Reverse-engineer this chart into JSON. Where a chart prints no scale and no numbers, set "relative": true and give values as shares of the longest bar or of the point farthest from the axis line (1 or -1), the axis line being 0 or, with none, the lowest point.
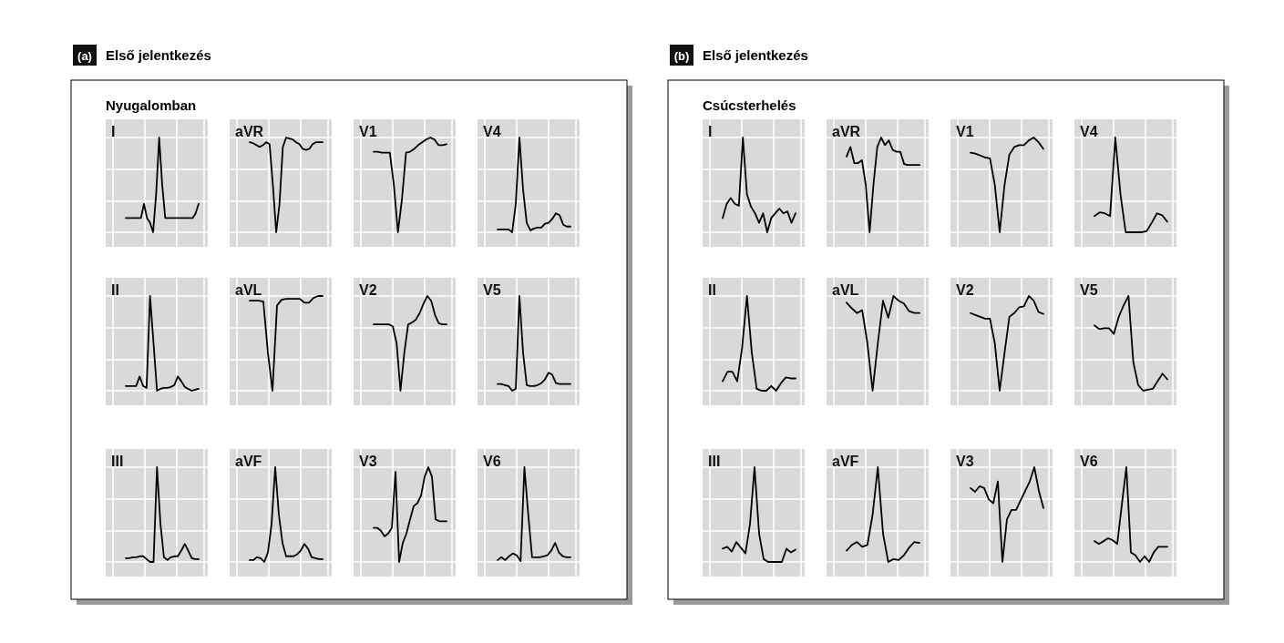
{
  "chart_data": [
    {
      "type": "other",
      "title": "Első jelentkezés",
      "subtitle": "Nyugalomban",
      "annotations": [
        "(a)"
      ]
    },
    {
      "type": "line",
      "title": "I",
      "relative": true,
      "grid": true,
      "color": "#000000",
      "categories": [
        null,
        null,
        null,
        null,
        null,
        null,
        null,
        null,
        null,
        null,
        null,
        null,
        null,
        null,
        null,
        null,
        null,
        null,
        null,
        null,
        null,
        null,
        null,
        null,
        null
      ],
      "values": [
        0.15,
        0.15,
        0.15,
        0.15,
        0.15,
        0.15,
        0.3,
        0.15,
        0.1,
        0.0,
        0.4,
        1.0,
        0.5,
        0.15,
        0.15,
        0.15,
        0.15,
        0.15,
        0.15,
        0.15,
        0.15,
        0.15,
        0.15,
        0.2,
        0.3
      ]
    },
    {
      "type": "line",
      "title": "aVR",
      "relative": true,
      "grid": true,
      "color": "#000000",
      "categories": [
        null,
        null,
        null,
        null,
        null,
        null,
        null,
        null,
        null,
        null,
        null,
        null,
        null,
        null,
        null,
        null,
        null,
        null,
        null,
        null,
        null,
        null,
        null
      ],
      "values": [
        0.95,
        0.94,
        0.92,
        0.9,
        0.92,
        0.95,
        0.93,
        0.5,
        0.0,
        0.3,
        0.9,
        1.0,
        0.99,
        0.98,
        0.95,
        0.93,
        0.88,
        0.87,
        0.88,
        0.93,
        0.95,
        0.95,
        0.95
      ]
    },
    {
      "type": "line",
      "title": "V1",
      "relative": true,
      "grid": true,
      "color": "#000000",
      "categories": [
        null,
        null,
        null,
        null,
        null,
        null,
        null,
        null,
        null,
        null,
        null,
        null,
        null,
        null,
        null,
        null,
        null,
        null,
        null
      ],
      "values": [
        0.85,
        0.85,
        0.84,
        0.84,
        0.84,
        0.5,
        0.0,
        0.35,
        0.84,
        0.85,
        0.88,
        0.92,
        0.95,
        0.98,
        1.0,
        0.98,
        0.92,
        0.92,
        0.93
      ]
    },
    {
      "type": "line",
      "title": "V4",
      "relative": true,
      "grid": true,
      "color": "#000000",
      "categories": [
        null,
        null,
        null,
        null,
        null,
        null,
        null,
        null,
        null,
        null,
        null,
        null,
        null,
        null,
        null,
        null,
        null,
        null,
        null,
        null,
        null
      ],
      "values": [
        0.03,
        0.03,
        0.03,
        0.03,
        0.0,
        0.3,
        1.0,
        0.45,
        0.1,
        0.02,
        0.04,
        0.05,
        0.05,
        0.09,
        0.1,
        0.14,
        0.2,
        0.18,
        0.08,
        0.06,
        0.06
      ]
    },
    {
      "type": "line",
      "title": "II",
      "relative": true,
      "grid": true,
      "color": "#000000",
      "categories": [
        null,
        null,
        null,
        null,
        null,
        null,
        null,
        null,
        null,
        null,
        null,
        null,
        null,
        null,
        null,
        null,
        null,
        null,
        null,
        null,
        null,
        null
      ],
      "values": [
        0.05,
        0.05,
        0.05,
        0.05,
        0.15,
        0.05,
        0.03,
        1.0,
        0.5,
        0.0,
        0.02,
        0.03,
        0.03,
        0.04,
        0.06,
        0.15,
        0.1,
        0.04,
        0.02,
        0.0,
        0.01,
        0.02
      ]
    },
    {
      "type": "line",
      "title": "aVL",
      "relative": true,
      "grid": true,
      "color": "#000000",
      "categories": [
        null,
        null,
        null,
        null,
        null,
        null,
        null,
        null,
        null,
        null,
        null,
        null,
        null,
        null,
        null,
        null,
        null
      ],
      "values": [
        0.95,
        0.95,
        0.95,
        0.94,
        0.4,
        0.0,
        0.9,
        0.96,
        0.97,
        0.97,
        0.97,
        0.97,
        0.93,
        0.93,
        0.98,
        1.0,
        1.0
      ]
    },
    {
      "type": "line",
      "title": "V2",
      "relative": true,
      "grid": true,
      "color": "#000000",
      "categories": [
        null,
        null,
        null,
        null,
        null,
        null,
        null,
        null,
        null,
        null,
        null,
        null,
        null,
        null,
        null,
        null,
        null,
        null,
        null,
        null
      ],
      "values": [
        0.7,
        0.7,
        0.7,
        0.7,
        0.7,
        0.68,
        0.5,
        0.0,
        0.4,
        0.7,
        0.72,
        0.75,
        0.82,
        0.92,
        1.0,
        0.95,
        0.8,
        0.71,
        0.7,
        0.7
      ]
    },
    {
      "type": "line",
      "title": "V5",
      "relative": true,
      "grid": true,
      "color": "#000000",
      "categories": [
        null,
        null,
        null,
        null,
        null,
        null,
        null,
        null,
        null,
        null,
        null,
        null,
        null,
        null,
        null,
        null,
        null,
        null,
        null,
        null,
        null
      ],
      "values": [
        0.07,
        0.07,
        0.06,
        0.05,
        0.0,
        0.02,
        1.0,
        0.4,
        0.06,
        0.05,
        0.05,
        0.06,
        0.08,
        0.12,
        0.19,
        0.17,
        0.08,
        0.07,
        0.07,
        0.07,
        0.07
      ]
    },
    {
      "type": "line",
      "title": "III",
      "relative": true,
      "grid": true,
      "color": "#000000",
      "categories": [
        null,
        null,
        null,
        null,
        null,
        null,
        null,
        null,
        null,
        null,
        null,
        null,
        null,
        null,
        null,
        null,
        null,
        null,
        null,
        null,
        null,
        null
      ],
      "values": [
        0.04,
        0.04,
        0.05,
        0.05,
        0.06,
        0.06,
        0.03,
        0.0,
        0.0,
        1.0,
        0.4,
        0.05,
        0.02,
        0.05,
        0.06,
        0.06,
        0.12,
        0.19,
        0.12,
        0.04,
        0.03,
        0.03
      ]
    },
    {
      "type": "line",
      "title": "aVF",
      "relative": true,
      "grid": true,
      "color": "#000000",
      "categories": [
        null,
        null,
        null,
        null,
        null,
        null,
        null,
        null,
        null,
        null,
        null,
        null,
        null,
        null,
        null,
        null,
        null,
        null,
        null,
        null,
        null
      ],
      "values": [
        0.02,
        0.02,
        0.05,
        0.04,
        0.0,
        0.1,
        0.4,
        1.0,
        0.5,
        0.2,
        0.06,
        0.06,
        0.06,
        0.08,
        0.12,
        0.19,
        0.14,
        0.05,
        0.04,
        0.03,
        0.03
      ]
    },
    {
      "type": "line",
      "title": "V3",
      "relative": true,
      "grid": true,
      "color": "#000000",
      "categories": [
        null,
        null,
        null,
        null,
        null,
        null,
        null,
        null,
        null,
        null,
        null,
        null,
        null,
        null,
        null,
        null,
        null,
        null,
        null,
        null,
        null
      ],
      "values": [
        0.36,
        0.36,
        0.33,
        0.27,
        0.3,
        0.36,
        0.95,
        0.0,
        0.2,
        0.3,
        0.45,
        0.59,
        0.62,
        0.7,
        0.9,
        1.0,
        0.9,
        0.45,
        0.43,
        0.43,
        0.43
      ]
    },
    {
      "type": "line",
      "title": "V6",
      "relative": true,
      "grid": true,
      "color": "#000000",
      "categories": [
        null,
        null,
        null,
        null,
        null,
        null,
        null,
        null,
        null,
        null,
        null,
        null,
        null,
        null,
        null,
        null,
        null,
        null,
        null,
        null
      ],
      "values": [
        0.02,
        0.05,
        0.02,
        0.06,
        0.09,
        0.07,
        0.01,
        1.0,
        0.5,
        0.05,
        0.05,
        0.05,
        0.06,
        0.07,
        0.12,
        0.2,
        0.1,
        0.06,
        0.05,
        0.05
      ]
    },
    {
      "type": "other",
      "title": "Első jelentkezés",
      "subtitle": "Csúcsterhelés",
      "annotations": [
        "(b)"
      ]
    },
    {
      "type": "line",
      "title": "I",
      "relative": true,
      "grid": true,
      "color": "#000000",
      "categories": [
        null,
        null,
        null,
        null,
        null,
        null,
        null,
        null,
        null,
        null,
        null,
        null,
        null,
        null,
        null,
        null,
        null,
        null,
        null
      ],
      "values": [
        0.15,
        0.3,
        0.36,
        0.3,
        0.28,
        1.0,
        0.4,
        0.27,
        0.2,
        0.1,
        0.2,
        0.0,
        0.15,
        0.2,
        0.25,
        0.2,
        0.22,
        0.1,
        0.2
      ]
    },
    {
      "type": "line",
      "title": "aVR",
      "relative": true,
      "grid": true,
      "color": "#000000",
      "categories": [
        null,
        null,
        null,
        null,
        null,
        null,
        null,
        null,
        null,
        null,
        null,
        null,
        null,
        null,
        null,
        null,
        null,
        null,
        null,
        null
      ],
      "values": [
        0.8,
        0.9,
        0.73,
        0.73,
        0.76,
        0.5,
        0.0,
        0.5,
        0.9,
        1.0,
        0.92,
        0.97,
        0.87,
        0.85,
        0.85,
        0.72,
        0.71,
        0.71,
        0.71,
        0.71
      ]
    },
    {
      "type": "line",
      "title": "V1",
      "relative": true,
      "grid": true,
      "color": "#000000",
      "categories": [
        null,
        null,
        null,
        null,
        null,
        null,
        null,
        null,
        null,
        null,
        null,
        null,
        null,
        null,
        null,
        null
      ],
      "values": [
        0.84,
        0.83,
        0.81,
        0.79,
        0.78,
        0.5,
        0.0,
        0.5,
        0.82,
        0.9,
        0.92,
        0.92,
        0.97,
        1.0,
        0.95,
        0.88
      ]
    },
    {
      "type": "line",
      "title": "V4",
      "relative": true,
      "grid": true,
      "color": "#000000",
      "categories": [
        null,
        null,
        null,
        null,
        null,
        null,
        null,
        null,
        null,
        null,
        null,
        null,
        null,
        null,
        null
      ],
      "values": [
        0.17,
        0.21,
        0.2,
        0.17,
        1.0,
        0.4,
        0.0,
        0.0,
        0.0,
        0.0,
        0.01,
        0.1,
        0.2,
        0.18,
        0.11
      ]
    },
    {
      "type": "line",
      "title": "II",
      "relative": true,
      "grid": true,
      "color": "#000000",
      "categories": [
        null,
        null,
        null,
        null,
        null,
        null,
        null,
        null,
        null,
        null,
        null,
        null,
        null,
        null,
        null,
        null
      ],
      "values": [
        0.1,
        0.2,
        0.2,
        0.1,
        0.45,
        1.0,
        0.4,
        0.02,
        0.0,
        0.0,
        0.05,
        0.0,
        0.08,
        0.14,
        0.13,
        0.13
      ]
    },
    {
      "type": "line",
      "title": "aVL",
      "relative": true,
      "grid": true,
      "color": "#000000",
      "categories": [
        null,
        null,
        null,
        null,
        null,
        null,
        null,
        null,
        null,
        null,
        null,
        null,
        null,
        null,
        null
      ],
      "values": [
        0.93,
        0.87,
        0.82,
        0.85,
        0.5,
        0.0,
        0.5,
        0.95,
        0.77,
        1.0,
        0.95,
        0.92,
        0.84,
        0.82,
        0.82
      ]
    },
    {
      "type": "line",
      "title": "V2",
      "relative": true,
      "grid": true,
      "color": "#000000",
      "categories": [
        null,
        null,
        null,
        null,
        null,
        null,
        null,
        null,
        null,
        null,
        null,
        null,
        null,
        null,
        null,
        null
      ],
      "values": [
        0.82,
        0.8,
        0.78,
        0.76,
        0.76,
        0.5,
        0.0,
        0.4,
        0.78,
        0.82,
        0.88,
        0.89,
        1.0,
        0.95,
        0.83,
        0.81
      ]
    },
    {
      "type": "line",
      "title": "V5",
      "relative": true,
      "grid": true,
      "color": "#000000",
      "categories": [
        null,
        null,
        null,
        null,
        null,
        null,
        null,
        null,
        null,
        null,
        null,
        null,
        null,
        null,
        null,
        null
      ],
      "values": [
        0.69,
        0.65,
        0.66,
        0.66,
        0.6,
        0.78,
        0.9,
        1.0,
        0.3,
        0.06,
        0.0,
        0.01,
        0.02,
        0.1,
        0.18,
        0.12
      ]
    },
    {
      "type": "line",
      "title": "III",
      "relative": true,
      "grid": true,
      "color": "#000000",
      "categories": [
        null,
        null,
        null,
        null,
        null,
        null,
        null,
        null,
        null,
        null,
        null,
        null,
        null,
        null,
        null,
        null,
        null
      ],
      "values": [
        0.14,
        0.16,
        0.11,
        0.21,
        0.15,
        0.09,
        0.4,
        1.0,
        0.3,
        0.03,
        0.0,
        0.0,
        0.0,
        0.0,
        0.14,
        0.1,
        0.13
      ]
    },
    {
      "type": "line",
      "title": "aVF",
      "relative": true,
      "grid": true,
      "color": "#000000",
      "categories": [
        null,
        null,
        null,
        null,
        null,
        null,
        null,
        null,
        null,
        null,
        null,
        null,
        null,
        null,
        null
      ],
      "values": [
        0.12,
        0.18,
        0.21,
        0.16,
        0.18,
        0.5,
        1.0,
        0.3,
        0.0,
        0.03,
        0.02,
        0.07,
        0.15,
        0.21,
        0.2
      ]
    },
    {
      "type": "line",
      "title": "V3",
      "relative": true,
      "grid": true,
      "color": "#000000",
      "categories": [
        null,
        null,
        null,
        null,
        null,
        null,
        null,
        null,
        null,
        null,
        null,
        null,
        null,
        null,
        null,
        null,
        null
      ],
      "values": [
        0.78,
        0.74,
        0.8,
        0.78,
        0.66,
        0.62,
        0.85,
        0.0,
        0.45,
        0.55,
        0.55,
        0.65,
        0.75,
        0.85,
        1.0,
        0.75,
        0.57
      ]
    },
    {
      "type": "line",
      "title": "V6",
      "relative": true,
      "grid": true,
      "color": "#000000",
      "categories": [
        null,
        null,
        null,
        null,
        null,
        null,
        null,
        null,
        null,
        null,
        null,
        null,
        null,
        null,
        null,
        null,
        null
      ],
      "values": [
        0.22,
        0.19,
        0.22,
        0.25,
        0.23,
        0.19,
        0.6,
        1.0,
        0.1,
        0.07,
        0.0,
        0.06,
        0.0,
        0.1,
        0.16,
        0.16,
        0.16
      ]
    }
  ]
}
